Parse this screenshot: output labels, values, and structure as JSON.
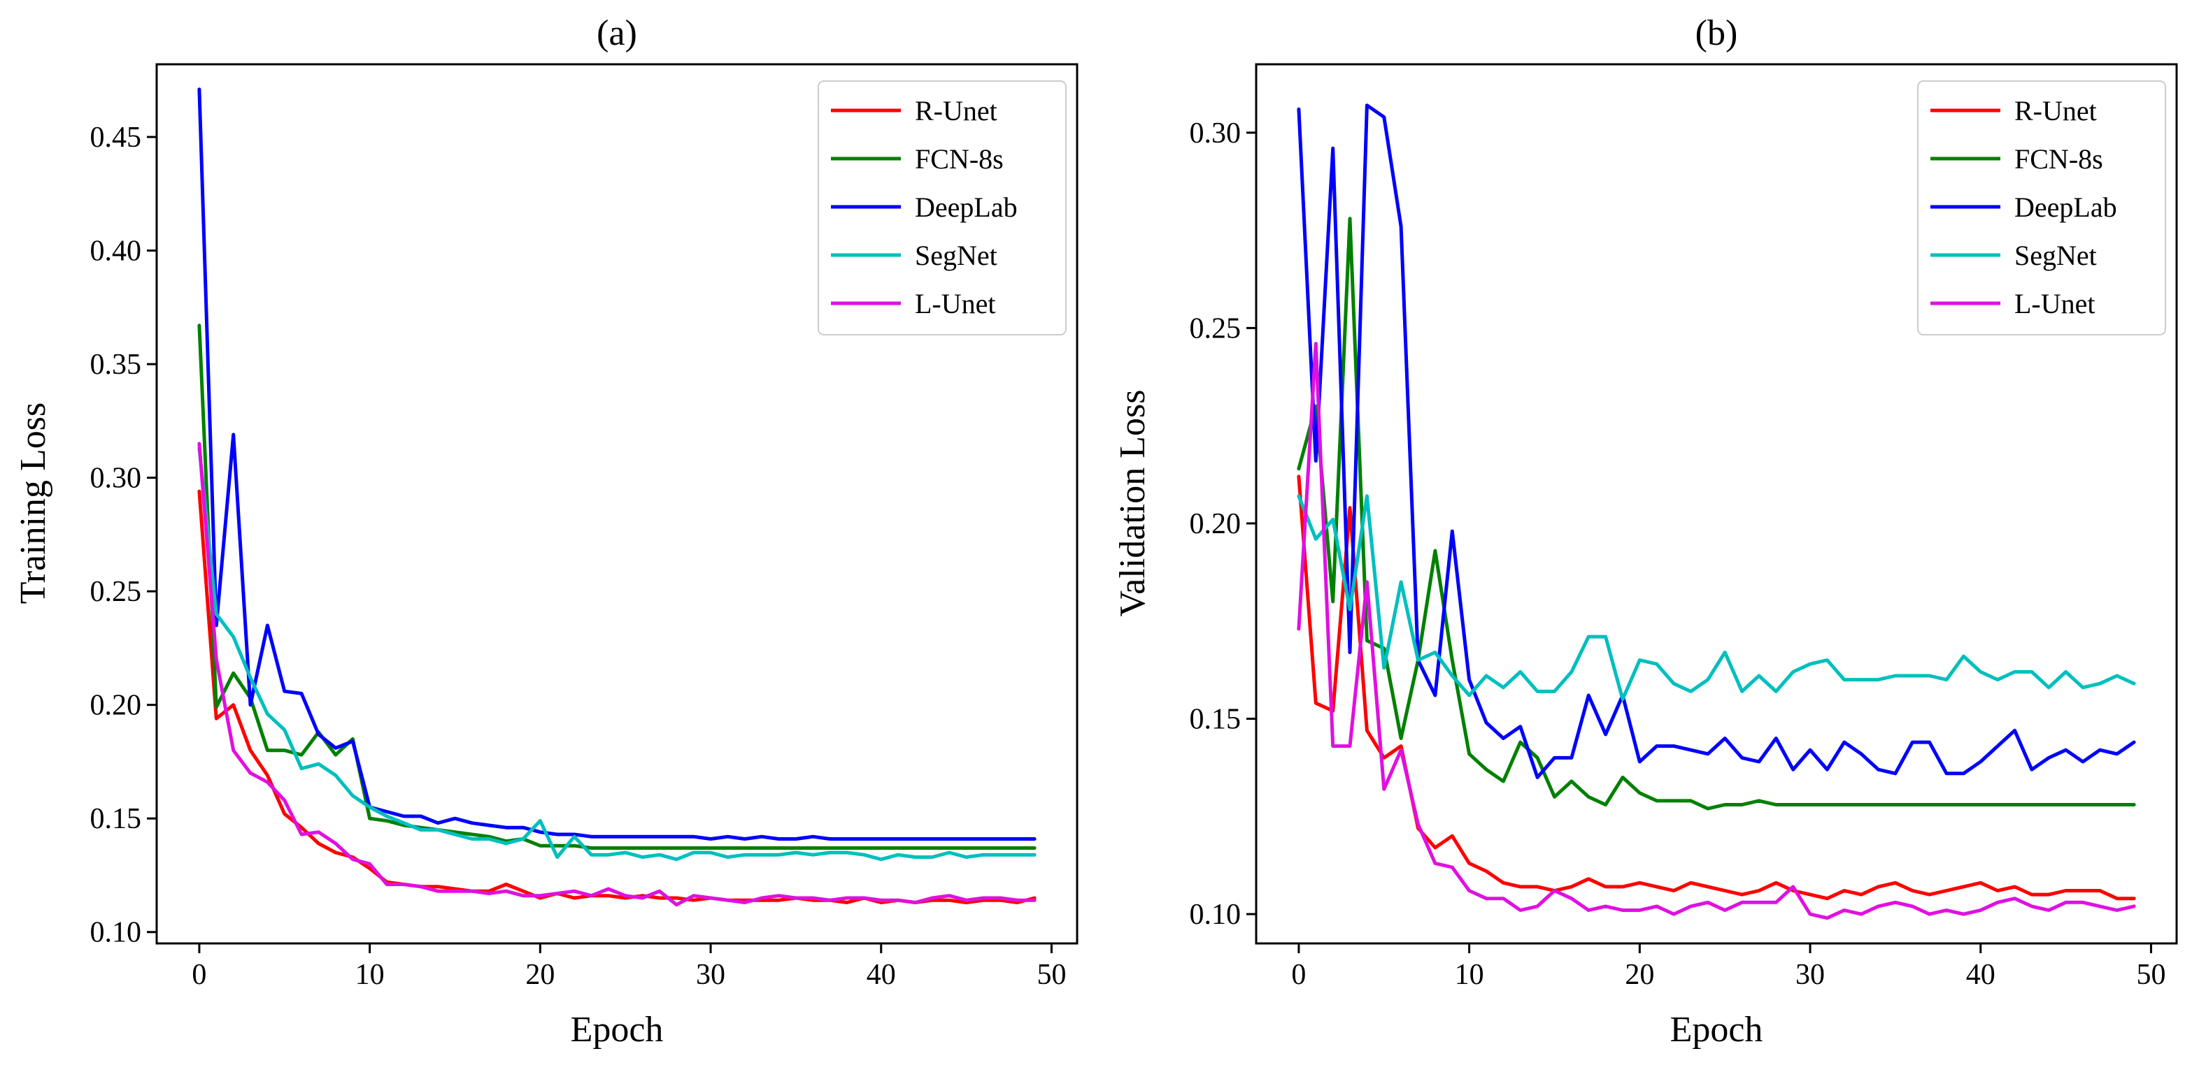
{
  "chart_data": [
    {
      "type": "line",
      "title": "(a)",
      "xlabel": "Epoch",
      "ylabel": "Training Loss",
      "xlim": [
        -2.5,
        51.5
      ],
      "ylim": [
        0.095,
        0.482
      ],
      "xticks": [
        0,
        10,
        20,
        30,
        40,
        50
      ],
      "yticks": [
        0.1,
        0.15,
        0.2,
        0.25,
        0.3,
        0.35,
        0.4,
        0.45
      ],
      "ytick_labels": [
        "0.10",
        "0.15",
        "0.20",
        "0.25",
        "0.30",
        "0.35",
        "0.40",
        "0.45"
      ],
      "legend_position": "top-right",
      "x": [
        0,
        1,
        2,
        3,
        4,
        5,
        6,
        7,
        8,
        9,
        10,
        11,
        12,
        13,
        14,
        15,
        16,
        17,
        18,
        19,
        20,
        21,
        22,
        23,
        24,
        25,
        26,
        27,
        28,
        29,
        30,
        31,
        32,
        33,
        34,
        35,
        36,
        37,
        38,
        39,
        40,
        41,
        42,
        43,
        44,
        45,
        46,
        47,
        48,
        49
      ],
      "series": [
        {
          "name": "R-Unet",
          "color": "#ff0000",
          "values": [
            0.294,
            0.194,
            0.2,
            0.18,
            0.169,
            0.152,
            0.146,
            0.139,
            0.135,
            0.133,
            0.128,
            0.122,
            0.121,
            0.12,
            0.12,
            0.119,
            0.118,
            0.118,
            0.121,
            0.118,
            0.115,
            0.117,
            0.115,
            0.116,
            0.116,
            0.115,
            0.116,
            0.115,
            0.115,
            0.114,
            0.115,
            0.114,
            0.114,
            0.114,
            0.114,
            0.115,
            0.114,
            0.114,
            0.113,
            0.115,
            0.113,
            0.114,
            0.113,
            0.114,
            0.114,
            0.113,
            0.114,
            0.114,
            0.113,
            0.115
          ]
        },
        {
          "name": "FCN-8s",
          "color": "#008000",
          "values": [
            0.367,
            0.199,
            0.214,
            0.203,
            0.18,
            0.18,
            0.178,
            0.188,
            0.178,
            0.185,
            0.15,
            0.149,
            0.147,
            0.146,
            0.145,
            0.144,
            0.143,
            0.142,
            0.14,
            0.141,
            0.138,
            0.138,
            0.138,
            0.137,
            0.137,
            0.137,
            0.137,
            0.137,
            0.137,
            0.137,
            0.137,
            0.137,
            0.137,
            0.137,
            0.137,
            0.137,
            0.137,
            0.137,
            0.137,
            0.137,
            0.137,
            0.137,
            0.137,
            0.137,
            0.137,
            0.137,
            0.137,
            0.137,
            0.137,
            0.137
          ]
        },
        {
          "name": "DeepLab",
          "color": "#0000ff",
          "values": [
            0.471,
            0.235,
            0.319,
            0.2,
            0.235,
            0.206,
            0.205,
            0.187,
            0.181,
            0.184,
            0.155,
            0.153,
            0.151,
            0.151,
            0.148,
            0.15,
            0.148,
            0.147,
            0.146,
            0.146,
            0.144,
            0.143,
            0.143,
            0.142,
            0.142,
            0.142,
            0.142,
            0.142,
            0.142,
            0.142,
            0.141,
            0.142,
            0.141,
            0.142,
            0.141,
            0.141,
            0.142,
            0.141,
            0.141,
            0.141,
            0.141,
            0.141,
            0.141,
            0.141,
            0.141,
            0.141,
            0.141,
            0.141,
            0.141,
            0.141
          ]
        },
        {
          "name": "SegNet",
          "color": "#00bfbf",
          "values": [
            0.313,
            0.24,
            0.23,
            0.212,
            0.196,
            0.189,
            0.172,
            0.174,
            0.169,
            0.16,
            0.155,
            0.151,
            0.148,
            0.145,
            0.145,
            0.143,
            0.141,
            0.141,
            0.139,
            0.141,
            0.149,
            0.133,
            0.142,
            0.134,
            0.134,
            0.135,
            0.133,
            0.134,
            0.132,
            0.135,
            0.135,
            0.133,
            0.134,
            0.134,
            0.134,
            0.135,
            0.134,
            0.135,
            0.135,
            0.134,
            0.132,
            0.134,
            0.133,
            0.133,
            0.135,
            0.133,
            0.134,
            0.134,
            0.134,
            0.134
          ]
        },
        {
          "name": "L-Unet",
          "color": "#e010e0",
          "values": [
            0.315,
            0.22,
            0.18,
            0.17,
            0.166,
            0.158,
            0.143,
            0.144,
            0.139,
            0.132,
            0.13,
            0.121,
            0.121,
            0.12,
            0.118,
            0.118,
            0.118,
            0.117,
            0.118,
            0.116,
            0.116,
            0.117,
            0.118,
            0.116,
            0.119,
            0.116,
            0.115,
            0.118,
            0.112,
            0.116,
            0.115,
            0.114,
            0.113,
            0.115,
            0.116,
            0.115,
            0.115,
            0.114,
            0.115,
            0.115,
            0.114,
            0.114,
            0.113,
            0.115,
            0.116,
            0.114,
            0.115,
            0.115,
            0.114,
            0.114
          ]
        }
      ]
    },
    {
      "type": "line",
      "title": "(b)",
      "xlabel": "Epoch",
      "ylabel": "Validation Loss",
      "xlim": [
        -2.5,
        51.5
      ],
      "ylim": [
        0.0925,
        0.3175
      ],
      "xticks": [
        0,
        10,
        20,
        30,
        40,
        50
      ],
      "yticks": [
        0.1,
        0.15,
        0.2,
        0.25,
        0.3
      ],
      "ytick_labels": [
        "0.10",
        "0.15",
        "0.20",
        "0.25",
        "0.30"
      ],
      "legend_position": "top-right",
      "x": [
        0,
        1,
        2,
        3,
        4,
        5,
        6,
        7,
        8,
        9,
        10,
        11,
        12,
        13,
        14,
        15,
        16,
        17,
        18,
        19,
        20,
        21,
        22,
        23,
        24,
        25,
        26,
        27,
        28,
        29,
        30,
        31,
        32,
        33,
        34,
        35,
        36,
        37,
        38,
        39,
        40,
        41,
        42,
        43,
        44,
        45,
        46,
        47,
        48,
        49
      ],
      "series": [
        {
          "name": "R-Unet",
          "color": "#ff0000",
          "values": [
            0.212,
            0.154,
            0.152,
            0.204,
            0.147,
            0.14,
            0.143,
            0.122,
            0.117,
            0.12,
            0.113,
            0.111,
            0.108,
            0.107,
            0.107,
            0.106,
            0.107,
            0.109,
            0.107,
            0.107,
            0.108,
            0.107,
            0.106,
            0.108,
            0.107,
            0.106,
            0.105,
            0.106,
            0.108,
            0.106,
            0.105,
            0.104,
            0.106,
            0.105,
            0.107,
            0.108,
            0.106,
            0.105,
            0.106,
            0.107,
            0.108,
            0.106,
            0.107,
            0.105,
            0.105,
            0.106,
            0.106,
            0.106,
            0.104,
            0.104
          ]
        },
        {
          "name": "FCN-8s",
          "color": "#008000",
          "values": [
            0.214,
            0.23,
            0.18,
            0.278,
            0.17,
            0.168,
            0.145,
            0.165,
            0.193,
            0.165,
            0.141,
            0.137,
            0.134,
            0.144,
            0.14,
            0.13,
            0.134,
            0.13,
            0.128,
            0.135,
            0.131,
            0.129,
            0.129,
            0.129,
            0.127,
            0.128,
            0.128,
            0.129,
            0.128,
            0.128,
            0.128,
            0.128,
            0.128,
            0.128,
            0.128,
            0.128,
            0.128,
            0.128,
            0.128,
            0.128,
            0.128,
            0.128,
            0.128,
            0.128,
            0.128,
            0.128,
            0.128,
            0.128,
            0.128,
            0.128
          ]
        },
        {
          "name": "DeepLab",
          "color": "#0000ff",
          "values": [
            0.306,
            0.216,
            0.296,
            0.167,
            0.307,
            0.304,
            0.276,
            0.165,
            0.156,
            0.198,
            0.16,
            0.149,
            0.145,
            0.148,
            0.135,
            0.14,
            0.14,
            0.156,
            0.146,
            0.156,
            0.139,
            0.143,
            0.143,
            0.142,
            0.141,
            0.145,
            0.14,
            0.139,
            0.145,
            0.137,
            0.142,
            0.137,
            0.144,
            0.141,
            0.137,
            0.136,
            0.144,
            0.144,
            0.136,
            0.136,
            0.139,
            0.143,
            0.147,
            0.137,
            0.14,
            0.142,
            0.139,
            0.142,
            0.141,
            0.144
          ]
        },
        {
          "name": "SegNet",
          "color": "#00bfbf",
          "values": [
            0.207,
            0.196,
            0.201,
            0.178,
            0.207,
            0.163,
            0.185,
            0.165,
            0.167,
            0.161,
            0.156,
            0.161,
            0.158,
            0.162,
            0.157,
            0.157,
            0.162,
            0.171,
            0.171,
            0.155,
            0.165,
            0.164,
            0.159,
            0.157,
            0.16,
            0.167,
            0.157,
            0.161,
            0.157,
            0.162,
            0.164,
            0.165,
            0.16,
            0.16,
            0.16,
            0.161,
            0.161,
            0.161,
            0.16,
            0.166,
            0.162,
            0.16,
            0.162,
            0.162,
            0.158,
            0.162,
            0.158,
            0.159,
            0.161,
            0.159
          ]
        },
        {
          "name": "L-Unet",
          "color": "#e010e0",
          "values": [
            0.173,
            0.246,
            0.143,
            0.143,
            0.185,
            0.132,
            0.142,
            0.123,
            0.113,
            0.112,
            0.106,
            0.104,
            0.104,
            0.101,
            0.102,
            0.106,
            0.104,
            0.101,
            0.102,
            0.101,
            0.101,
            0.102,
            0.1,
            0.102,
            0.103,
            0.101,
            0.103,
            0.103,
            0.103,
            0.107,
            0.1,
            0.099,
            0.101,
            0.1,
            0.102,
            0.103,
            0.102,
            0.1,
            0.101,
            0.1,
            0.101,
            0.103,
            0.104,
            0.102,
            0.101,
            0.103,
            0.103,
            0.102,
            0.101,
            0.102
          ]
        }
      ]
    }
  ]
}
